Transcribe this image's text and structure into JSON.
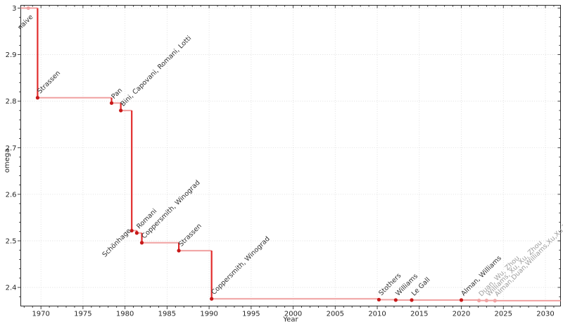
{
  "figure": {
    "background": "#ffffff"
  },
  "chart_data": {
    "type": "line",
    "subtype": "step-post",
    "title": "",
    "xlabel": "Year",
    "ylabel": "omega",
    "xlim": [
      1967.6,
      2031.8
    ],
    "ylim": [
      2.36,
      3.006
    ],
    "x_major_ticks": [
      1970,
      1975,
      1980,
      1985,
      1990,
      1995,
      2000,
      2005,
      2010,
      2015,
      2020,
      2025,
      2030
    ],
    "x_minor_step": 1,
    "y_major_ticks": [
      2.4,
      2.5,
      2.6,
      2.7,
      2.8,
      2.9,
      3
    ],
    "y_minor_step": 0.02,
    "grid": {
      "show": true,
      "style": "dotted",
      "color": "#dadada"
    },
    "legend": {
      "show": false
    },
    "colors": {
      "line": "#e12c2c",
      "line_muted": "#f0a0a0",
      "marker": "#c81919",
      "marker_muted": "#efa3a3",
      "label": "#303030",
      "label_muted": "#9d9d9d",
      "axis": "#2b2b2b"
    },
    "points": [
      {
        "year": 1968.5,
        "omega": 3,
        "label": "naive",
        "muted": false,
        "muted_marker": true,
        "label_side": "below"
      },
      {
        "year": 1969.6,
        "omega": 2.8074,
        "label": "Strassen",
        "muted": false
      },
      {
        "year": 1978.4,
        "omega": 2.796,
        "label": "Pan",
        "muted": false
      },
      {
        "year": 1979.5,
        "omega": 2.78,
        "label": "Bini, Capovani, Romani, Lotti",
        "muted": false
      },
      {
        "year": 1980.8,
        "omega": 2.522,
        "label": "Schönhage",
        "muted": false,
        "label_dx": -38,
        "label_dy": 38
      },
      {
        "year": 1981.4,
        "omega": 2.517,
        "label": "Romani",
        "muted": false
      },
      {
        "year": 1982.0,
        "omega": 2.496,
        "label": "Coppersmith, Winograd",
        "muted": false
      },
      {
        "year": 1986.4,
        "omega": 2.479,
        "label": "Strassen",
        "muted": false
      },
      {
        "year": 1990.3,
        "omega": 2.3755,
        "label": "Coppersmith, Winograd",
        "muted": false
      },
      {
        "year": 2010.2,
        "omega": 2.3737,
        "label": "Stothers",
        "muted": false
      },
      {
        "year": 2012.2,
        "omega": 2.3729,
        "label": "Williams",
        "muted": false
      },
      {
        "year": 2014.1,
        "omega": 2.37287,
        "label": "Le Gall",
        "muted": false
      },
      {
        "year": 2020.0,
        "omega": 2.37286,
        "label": "Alman, Williams",
        "muted": false
      },
      {
        "year": 2022.1,
        "omega": 2.37188,
        "label": "Duan, Wu, Zhou",
        "muted": true
      },
      {
        "year": 2023.0,
        "omega": 2.371866,
        "label": "Williams, Xu, Xu, Zhou",
        "muted": true
      },
      {
        "year": 2024.0,
        "omega": 2.371552,
        "label": "Alman,Duan,Williams,Xu,Xu,Zhou",
        "muted": true
      }
    ]
  }
}
